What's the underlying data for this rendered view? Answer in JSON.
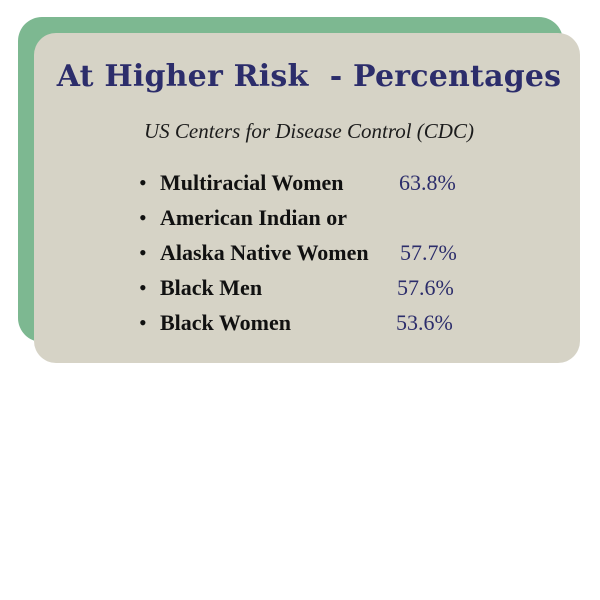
{
  "slide": {
    "title": "At Higher Risk  - Percentages",
    "subtitle": "US Centers for Disease Control (CDC)",
    "bullet_symbol": "•",
    "items": [
      {
        "label": "Multiracial Women",
        "value": "63.8%"
      },
      {
        "label": "American Indian or",
        "value": ""
      },
      {
        "label": "Alaska Native Women",
        "value": "57.7%"
      },
      {
        "label": "Black Men",
        "value": "57.6%"
      },
      {
        "label": "Black Women",
        "value": "53.6%"
      }
    ]
  },
  "colors": {
    "title": "#2c2d6b",
    "card_front": "#d6d3c6",
    "card_back": "#7db891",
    "text": "#111111"
  }
}
